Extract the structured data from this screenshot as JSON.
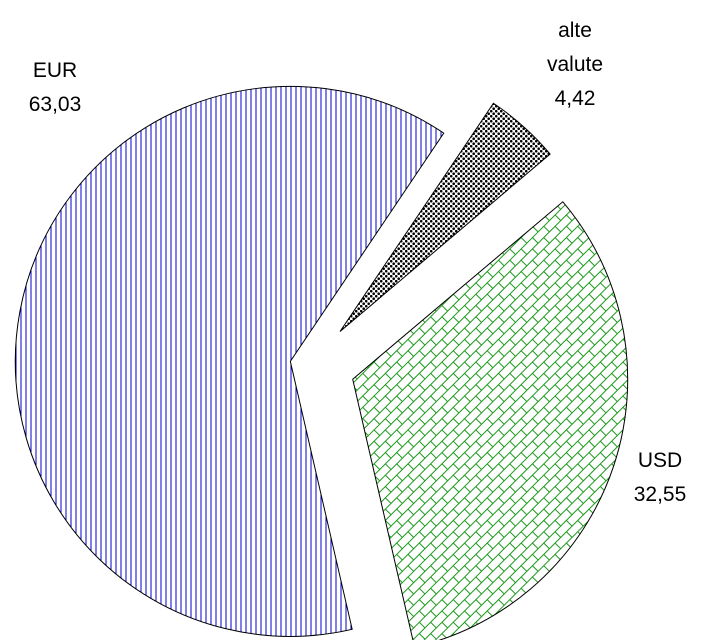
{
  "chart_data": {
    "type": "pie",
    "categories": [
      "EUR",
      "alte valute",
      "USD"
    ],
    "values": [
      63.03,
      4.42,
      32.55
    ],
    "value_labels": [
      "63,03",
      "4,42",
      "32,55"
    ],
    "colors": [
      "#0000cc",
      "#000000",
      "#1a9a1a"
    ]
  }
}
